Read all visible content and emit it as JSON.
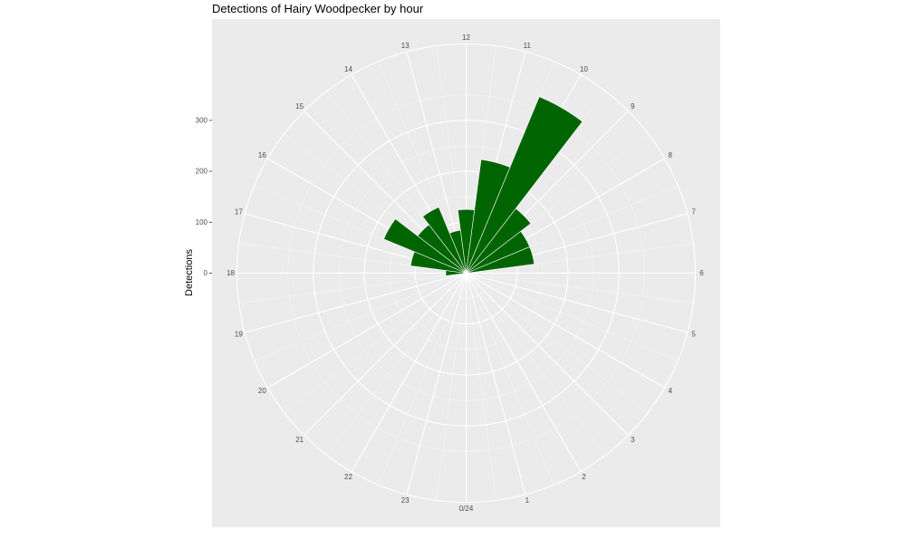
{
  "chart_data": {
    "type": "bar",
    "coord": "polar",
    "title": "Detections of Hairy Woodpecker by hour",
    "xlabel": "",
    "ylabel": "Detections",
    "categories": [
      "0/24",
      "1",
      "2",
      "3",
      "4",
      "5",
      "6",
      "7",
      "8",
      "9",
      "10",
      "11",
      "12",
      "13",
      "14",
      "15",
      "16",
      "17",
      "18",
      "19",
      "20",
      "21",
      "22",
      "23"
    ],
    "values": [
      0,
      0,
      0,
      0,
      0,
      0,
      0,
      135,
      135,
      160,
      375,
      225,
      125,
      85,
      140,
      120,
      175,
      110,
      40,
      0,
      0,
      0,
      0,
      0
    ],
    "ylim": [
      0,
      450
    ],
    "yticks": [
      0,
      100,
      200,
      300
    ],
    "grid": true,
    "bar_color": "#006400",
    "panel_color": "#EBEBEB",
    "grid_color": "#FFFFFF"
  }
}
